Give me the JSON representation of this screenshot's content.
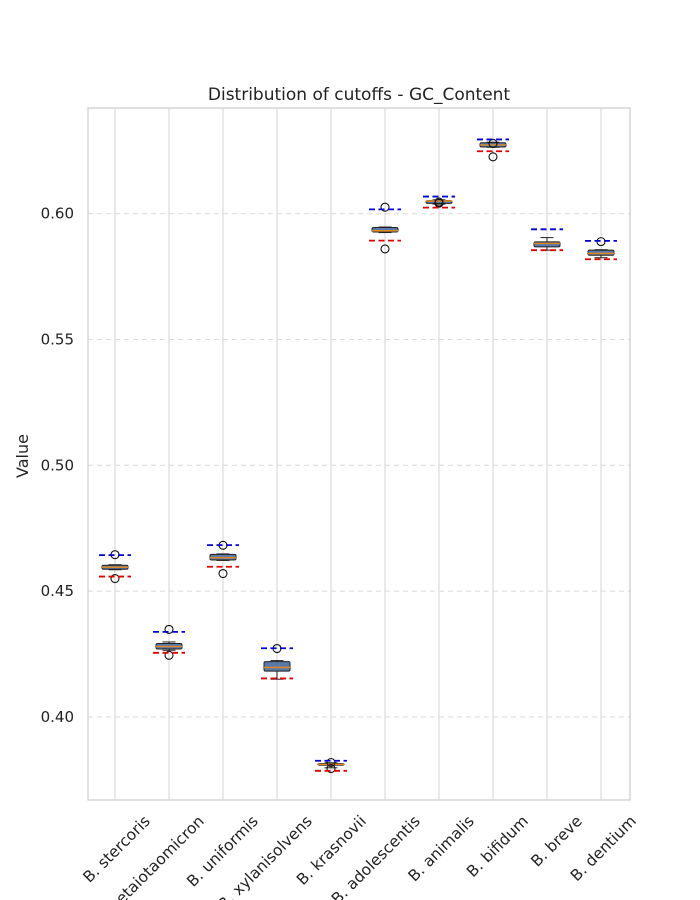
{
  "chart_data": {
    "type": "boxplot",
    "title": "Distribution of cutoffs - GC_Content",
    "xlabel": "",
    "ylabel": "Value",
    "ylim": [
      0.367,
      0.642
    ],
    "yticks": [
      "0.40",
      "0.45",
      "0.50",
      "0.55",
      "0.60"
    ],
    "ytick_values": [
      0.4,
      0.45,
      0.5,
      0.55,
      0.6
    ],
    "grid": {
      "y": "dashed",
      "x": "solid"
    },
    "colors": {
      "box_fill": "#5a78a8",
      "box_edge": "#222222",
      "median": "#d9892b",
      "upper_ref": "#0000cc",
      "lower_ref": "#dd0000",
      "grid": "#dddddd",
      "axes": "#cccccc"
    },
    "categories": [
      "B. stercoris",
      "B. thetaiotaomicron",
      "B. uniformis",
      "B. xylanisolvens",
      "B. krasnovii",
      "B. adolescentis",
      "B. animalis",
      "B. bifidum",
      "B. breve",
      "B. dentium"
    ],
    "boxes": [
      {
        "whisker_low": 0.4585,
        "q1": 0.4587,
        "median": 0.4595,
        "q3": 0.4603,
        "whisker_high": 0.4605,
        "outliers": [
          0.4645,
          0.455
        ],
        "upper_ref": 0.4643,
        "lower_ref": 0.4558
      },
      {
        "whisker_low": 0.4265,
        "q1": 0.427,
        "median": 0.428,
        "q3": 0.4292,
        "whisker_high": 0.4298,
        "outliers": [
          0.4348,
          0.4245
        ],
        "upper_ref": 0.4338,
        "lower_ref": 0.4255
      },
      {
        "whisker_low": 0.4622,
        "q1": 0.4624,
        "median": 0.4633,
        "q3": 0.4646,
        "whisker_high": 0.4648,
        "outliers": [
          0.4682,
          0.457
        ],
        "upper_ref": 0.4683,
        "lower_ref": 0.4597
      },
      {
        "whisker_low": 0.415,
        "q1": 0.4182,
        "median": 0.4197,
        "q3": 0.422,
        "whisker_high": 0.4224,
        "outliers": [
          0.4272
        ],
        "upper_ref": 0.4273,
        "lower_ref": 0.4153
      },
      {
        "whisker_low": 0.3798,
        "q1": 0.3808,
        "median": 0.3812,
        "q3": 0.3815,
        "whisker_high": 0.3818,
        "outliers": [
          0.3819,
          0.3795
        ],
        "upper_ref": 0.3826,
        "lower_ref": 0.3786
      },
      {
        "whisker_low": 0.5925,
        "q1": 0.5927,
        "median": 0.5932,
        "q3": 0.5945,
        "whisker_high": 0.5947,
        "outliers": [
          0.6026,
          0.586
        ],
        "upper_ref": 0.6017,
        "lower_ref": 0.5893
      },
      {
        "whisker_low": 0.6038,
        "q1": 0.6041,
        "median": 0.605,
        "q3": 0.6052,
        "whisker_high": 0.6055,
        "outliers": [
          0.6046,
          0.6042
        ],
        "upper_ref": 0.6068,
        "lower_ref": 0.6024
      },
      {
        "whisker_low": 0.6264,
        "q1": 0.6265,
        "median": 0.6273,
        "q3": 0.6282,
        "whisker_high": 0.6284,
        "outliers": [
          0.6279,
          0.6226
        ],
        "upper_ref": 0.6295,
        "lower_ref": 0.6248
      },
      {
        "whisker_low": 0.5855,
        "q1": 0.5868,
        "median": 0.5882,
        "q3": 0.5888,
        "whisker_high": 0.5905,
        "outliers": [],
        "upper_ref": 0.5938,
        "lower_ref": 0.5855
      },
      {
        "whisker_low": 0.5825,
        "q1": 0.5835,
        "median": 0.5842,
        "q3": 0.5855,
        "whisker_high": 0.5857,
        "outliers": [
          0.5889
        ],
        "upper_ref": 0.5892,
        "lower_ref": 0.5819
      }
    ]
  }
}
